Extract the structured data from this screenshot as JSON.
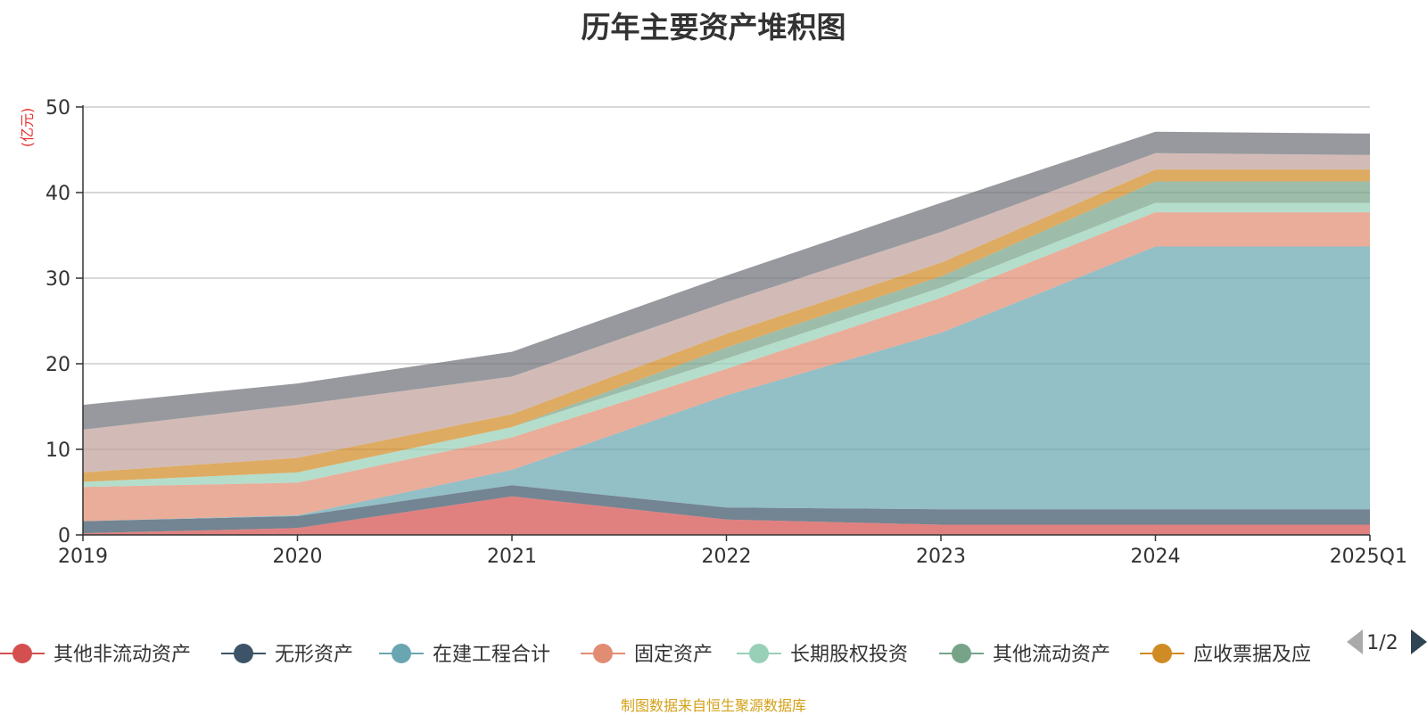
{
  "title": "历年主要资产堆积图",
  "source_note": "制图数据来自恒生聚源数据库",
  "chart_data": {
    "type": "area",
    "stacked": true,
    "title": "历年主要资产堆积图",
    "unit_label": "(亿元)",
    "x": [
      "2019",
      "2020",
      "2021",
      "2022",
      "2023",
      "2024",
      "2025Q1"
    ],
    "ylim": [
      0,
      50
    ],
    "yticks": [
      0,
      10,
      20,
      30,
      40,
      50
    ],
    "grid": true,
    "legend_position": "bottom",
    "legend_page": "1/2",
    "series": [
      {
        "name": "其他非流动资产",
        "color": "#d4504f",
        "values": [
          0.2,
          0.8,
          4.5,
          1.8,
          1.2,
          1.2,
          1.2
        ]
      },
      {
        "name": "无形资产",
        "color": "#3d5468",
        "values": [
          1.4,
          1.4,
          1.3,
          1.4,
          1.8,
          1.8,
          1.8
        ]
      },
      {
        "name": "在建工程合计",
        "color": "#6aa6b2",
        "values": [
          0.0,
          0.1,
          1.8,
          13.1,
          20.6,
          30.7,
          30.7
        ]
      },
      {
        "name": "固定资产",
        "color": "#e08d73",
        "values": [
          4.0,
          3.8,
          3.8,
          3.1,
          4.1,
          4.0,
          4.0
        ]
      },
      {
        "name": "长期股权投资",
        "color": "#98d0b7",
        "values": [
          0.6,
          1.2,
          1.2,
          1.2,
          1.2,
          1.1,
          1.1
        ]
      },
      {
        "name": "其他流动资产",
        "color": "#77a489",
        "values": [
          0.0,
          0.0,
          0.0,
          1.3,
          1.3,
          2.5,
          2.5
        ]
      },
      {
        "name": "应收票据及应",
        "color": "#d18b25",
        "values": [
          1.1,
          1.7,
          1.5,
          1.6,
          1.6,
          1.4,
          1.4
        ]
      },
      {
        "name": "",
        "color": "#c0a19a",
        "values": [
          5.0,
          6.2,
          4.4,
          3.7,
          3.6,
          1.9,
          1.7
        ]
      },
      {
        "name": "",
        "color": "#6f7278",
        "values": [
          2.9,
          2.5,
          2.9,
          3.1,
          3.4,
          2.5,
          2.5
        ]
      }
    ]
  }
}
